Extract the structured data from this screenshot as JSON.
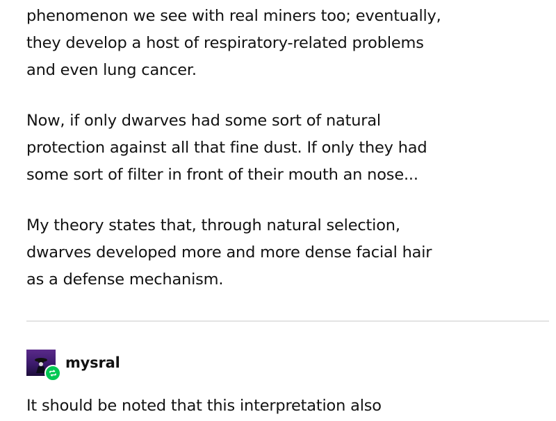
{
  "post": {
    "paragraphs": [
      {
        "lines": [
          "phenomenon we see with real miners too; eventually,",
          "they develop a host of respiratory-related problems",
          "and even lung cancer."
        ]
      },
      {
        "lines": [
          "Now, if only dwarves had some sort of natural",
          "protection against all that fine dust. If only they had",
          "some sort of filter in front of their mouth an nose..."
        ]
      },
      {
        "lines": [
          "My theory states that, through natural selection,",
          "dwarves developed more and more dense facial hair",
          "as a defense mechanism."
        ]
      }
    ]
  },
  "reblog": {
    "username": "mysral",
    "avatar_icon": "user-avatar",
    "badge_icon": "reblog-icon",
    "badge_color": "#00c853",
    "text_lines": [
      "It should be noted that this interpretation also"
    ]
  }
}
